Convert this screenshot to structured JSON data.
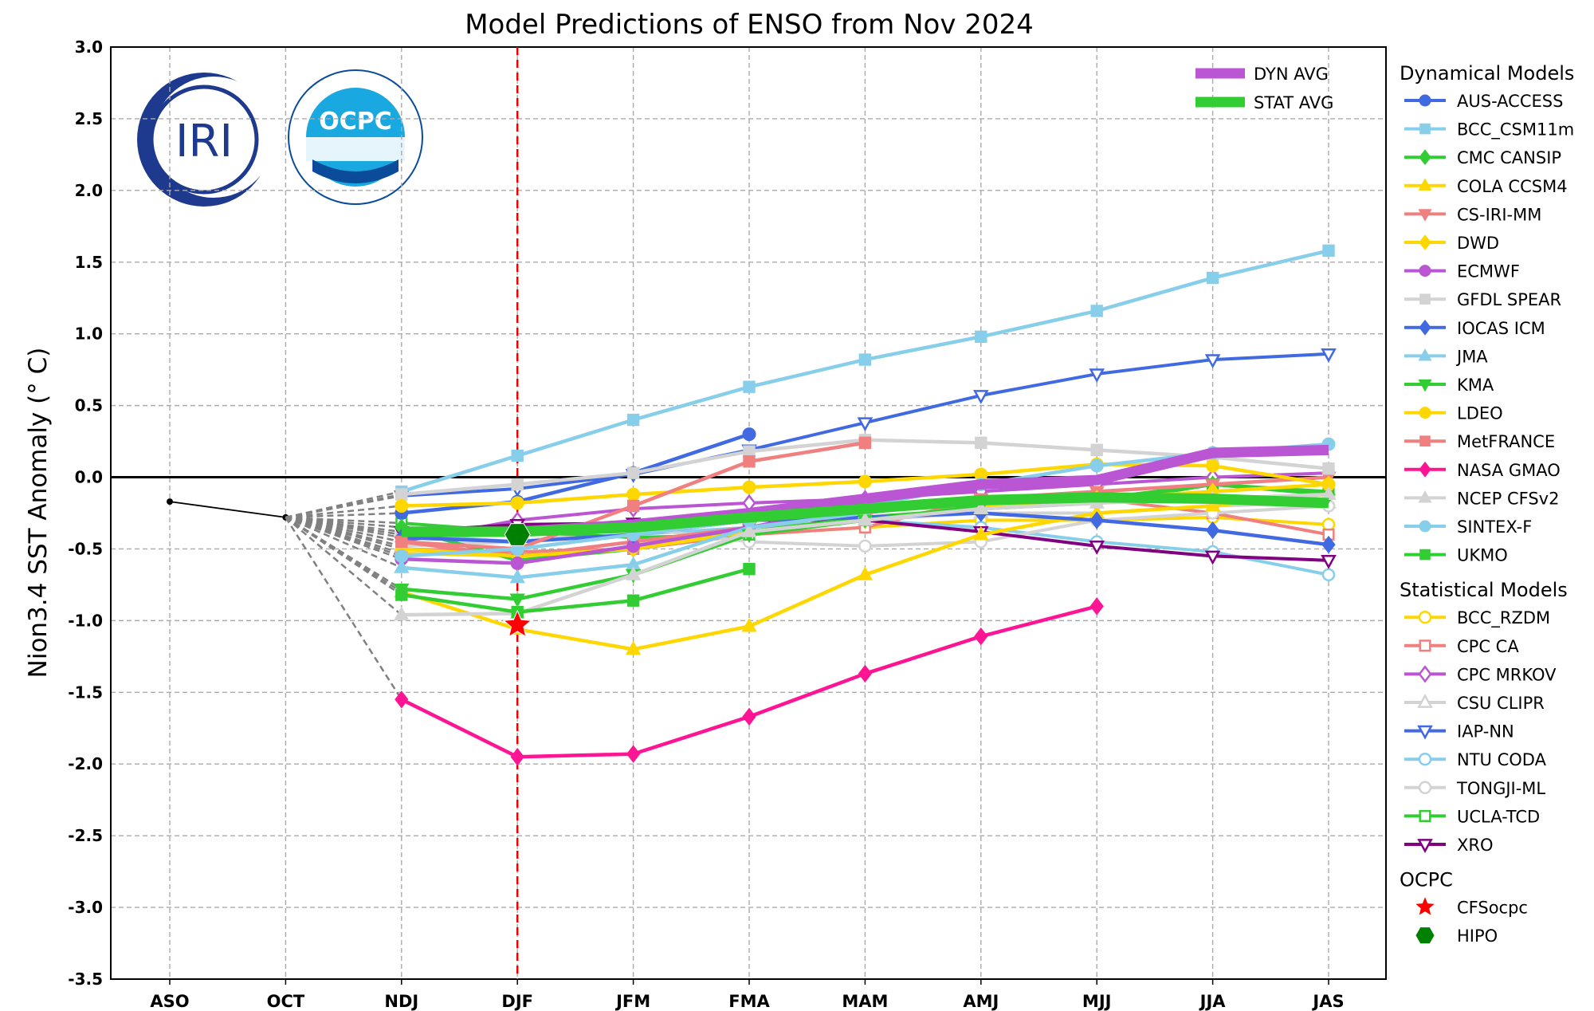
{
  "chart_data": {
    "type": "line",
    "title": "Model Predictions of ENSO from Nov 2024",
    "xlabel": "",
    "ylabel": "Nino3.4 SST Anomaly (° C)",
    "ylabel_display": "Nion3.4 SST Anomaly (° C)",
    "categories": [
      "ASO",
      "OCT",
      "NDJ",
      "DJF",
      "JFM",
      "FMA",
      "MAM",
      "AMJ",
      "MJJ",
      "JJA",
      "JAS"
    ],
    "ylim": [
      -3.5,
      3.0
    ],
    "yticks": [
      "3.0",
      "2.5",
      "2.0",
      "1.5",
      "1.0",
      "0.5",
      "0.0",
      "-0.5",
      "-1.0",
      "-1.5",
      "-2.0",
      "-2.5",
      "-3.0",
      "-3.5"
    ],
    "grid": true,
    "zero_line": true,
    "forecast_start_marker": "DJF",
    "observed": {
      "categories": [
        "ASO",
        "OCT"
      ],
      "values": [
        -0.17,
        -0.28
      ],
      "color": "#000000"
    },
    "averages": [
      {
        "name": "DYN AVG",
        "color": "#BA55D3",
        "values": [
          -0.38,
          -0.38,
          -0.33,
          -0.25,
          -0.15,
          -0.05,
          -0.02,
          0.17,
          0.19
        ]
      },
      {
        "name": "STAT AVG",
        "color": "#32CD32",
        "values": [
          -0.38,
          -0.38,
          -0.35,
          -0.28,
          -0.22,
          -0.16,
          -0.14,
          -0.15,
          -0.18
        ]
      }
    ],
    "groups": [
      {
        "name": "Dynamical Models",
        "series": [
          {
            "name": "AUS-ACCESS",
            "color": "#4169E1",
            "marker": "circle",
            "filled": true,
            "values": [
              -0.25,
              -0.17,
              0.03,
              0.3
            ]
          },
          {
            "name": "BCC_CSM11m",
            "color": "#87CEEB",
            "marker": "square",
            "filled": true,
            "values": [
              -0.1,
              0.15,
              0.4,
              0.63,
              0.82,
              0.98,
              1.16,
              1.39,
              1.58
            ]
          },
          {
            "name": "CMC CANSIP",
            "color": "#32CD32",
            "marker": "diamond",
            "filled": true,
            "values": [
              -0.35,
              -0.58,
              -0.5,
              -0.38,
              -0.28,
              -0.22,
              -0.18,
              -0.05,
              -0.12
            ]
          },
          {
            "name": "COLA CCSM4",
            "color": "#FFD700",
            "marker": "triangle-up",
            "filled": true,
            "values": [
              -0.8,
              -1.06,
              -1.2,
              -1.04,
              -0.68,
              -0.4,
              -0.25,
              -0.2,
              -0.12
            ]
          },
          {
            "name": "CS-IRI-MM",
            "color": "#F08080",
            "marker": "triangle-down",
            "filled": true,
            "values": [
              -0.45,
              -0.55,
              -0.45,
              -0.35,
              -0.25,
              -0.15,
              -0.1,
              -0.05,
              0.0
            ]
          },
          {
            "name": "DWD",
            "color": "#FFD700",
            "marker": "diamond",
            "filled": true,
            "values": [
              -0.5,
              -0.55,
              -0.5,
              -0.38,
              -0.3,
              -0.2,
              -0.15,
              -0.1,
              -0.05
            ]
          },
          {
            "name": "ECMWF",
            "color": "#BA55D3",
            "marker": "circle",
            "filled": true,
            "values": [
              -0.57,
              -0.6,
              -0.48,
              -0.35,
              -0.2
            ]
          },
          {
            "name": "GFDL SPEAR",
            "color": "#D3D3D3",
            "marker": "square",
            "filled": true,
            "values": [
              -0.12,
              -0.05,
              0.03,
              0.18,
              0.26,
              0.24,
              0.19,
              0.14,
              0.06
            ]
          },
          {
            "name": "IOCAS ICM",
            "color": "#4169E1",
            "marker": "diamond",
            "filled": true,
            "values": [
              -0.42,
              -0.45,
              -0.4,
              -0.3,
              -0.28,
              -0.25,
              -0.3,
              -0.37,
              -0.47
            ]
          },
          {
            "name": "JMA",
            "color": "#87CEEB",
            "marker": "triangle-up",
            "filled": true,
            "values": [
              -0.63,
              -0.7,
              -0.61,
              -0.35,
              -0.25
            ]
          },
          {
            "name": "KMA",
            "color": "#32CD32",
            "marker": "triangle-down",
            "filled": true,
            "values": [
              -0.78,
              -0.85,
              -0.68,
              -0.4,
              -0.3,
              -0.2
            ]
          },
          {
            "name": "LDEO",
            "color": "#FFD700",
            "marker": "circle",
            "filled": true,
            "values": [
              -0.2,
              -0.18,
              -0.12,
              -0.07,
              -0.03,
              0.02,
              0.09,
              0.08,
              -0.05
            ]
          },
          {
            "name": "MetFRANCE",
            "color": "#F08080",
            "marker": "square",
            "filled": true,
            "values": [
              -0.45,
              -0.5,
              -0.2,
              0.11,
              0.24
            ]
          },
          {
            "name": "NASA GMAO",
            "color": "#FF1493",
            "marker": "diamond",
            "filled": true,
            "values": [
              -1.55,
              -1.95,
              -1.93,
              -1.67,
              -1.37,
              -1.11,
              -0.9
            ]
          },
          {
            "name": "NCEP CFSv2",
            "color": "#D3D3D3",
            "marker": "triangle-up",
            "filled": true,
            "values": [
              -0.96,
              -0.95,
              -0.68,
              -0.38,
              -0.3,
              -0.22,
              -0.18,
              -0.15,
              -0.12
            ]
          },
          {
            "name": "SINTEX-F",
            "color": "#87CEEB",
            "marker": "circle",
            "filled": true,
            "values": [
              -0.55,
              -0.5,
              -0.4,
              -0.3,
              -0.2,
              -0.05,
              0.08,
              0.17,
              0.23
            ]
          },
          {
            "name": "UKMO",
            "color": "#32CD32",
            "marker": "square",
            "filled": true,
            "values": [
              -0.82,
              -0.94,
              -0.86,
              -0.64
            ]
          }
        ]
      },
      {
        "name": "Statistical Models",
        "series": [
          {
            "name": "BCC_RZDM",
            "color": "#FFD700",
            "marker": "circle",
            "filled": false,
            "values": [
              -0.53,
              -0.55,
              -0.5,
              -0.4,
              -0.35,
              -0.3,
              -0.3,
              -0.28,
              -0.33
            ]
          },
          {
            "name": "CPC CA",
            "color": "#F08080",
            "marker": "square",
            "filled": false,
            "values": [
              -0.5,
              -0.52,
              -0.5,
              -0.4,
              -0.35,
              -0.15,
              -0.15,
              -0.25,
              -0.4
            ]
          },
          {
            "name": "CPC MRKOV",
            "color": "#BA55D3",
            "marker": "diamond",
            "filled": false,
            "values": [
              -0.45,
              -0.3,
              -0.22,
              -0.18,
              -0.15,
              -0.1,
              -0.05,
              0.0,
              0.03
            ]
          },
          {
            "name": "CSU CLIPR",
            "color": "#D3D3D3",
            "marker": "triangle-up",
            "filled": false,
            "values": [
              -0.48,
              -0.45,
              -0.35,
              -0.3,
              -0.3,
              -0.25,
              -0.25,
              -0.2,
              -0.18
            ]
          },
          {
            "name": "IAP-NN",
            "color": "#4169E1",
            "marker": "triangle-down",
            "filled": false,
            "values": [
              -0.13,
              -0.08,
              0.02,
              0.19,
              0.38,
              0.57,
              0.72,
              0.82,
              0.86
            ]
          },
          {
            "name": "NTU CODA",
            "color": "#87CEEB",
            "marker": "circle",
            "filled": false,
            "values": [
              -0.4,
              -0.45,
              -0.4,
              -0.35,
              -0.3,
              -0.35,
              -0.45,
              -0.52,
              -0.68
            ]
          },
          {
            "name": "TONGJI-ML",
            "color": "#D3D3D3",
            "marker": "circle",
            "filled": false,
            "values": [
              -0.4,
              -0.38,
              -0.35,
              -0.45,
              -0.48,
              -0.45,
              -0.3,
              -0.25,
              -0.2
            ]
          },
          {
            "name": "UCLA-TCD",
            "color": "#32CD32",
            "marker": "square",
            "filled": false,
            "values": [
              -0.32,
              -0.38,
              -0.42,
              -0.4,
              -0.3,
              -0.2,
              -0.15,
              -0.05,
              -0.1
            ]
          },
          {
            "name": "XRO",
            "color": "#800080",
            "marker": "triangle-down",
            "filled": false,
            "values": [
              -0.38,
              -0.33,
              -0.32,
              -0.3,
              -0.3,
              -0.38,
              -0.48,
              -0.55,
              -0.58
            ]
          }
        ]
      },
      {
        "name": "OCPC",
        "series": [
          {
            "name": "CFSocpc",
            "color": "#FF0000",
            "marker": "star",
            "filled": true,
            "points": [
              {
                "x": "DJF",
                "y": -1.03
              }
            ]
          },
          {
            "name": "HIPO",
            "color": "#008000",
            "marker": "hexagon",
            "filled": true,
            "points": [
              {
                "x": "DJF",
                "y": -0.4
              }
            ]
          }
        ]
      }
    ],
    "legend_placement": "right"
  },
  "logos": {
    "iri": "IRI",
    "ocpc": "OCPC",
    "ocpc_ring": "OCEAN CLIMATE PREDICTION CENTER",
    "ocpc_korean": "해양기후예측센터"
  }
}
